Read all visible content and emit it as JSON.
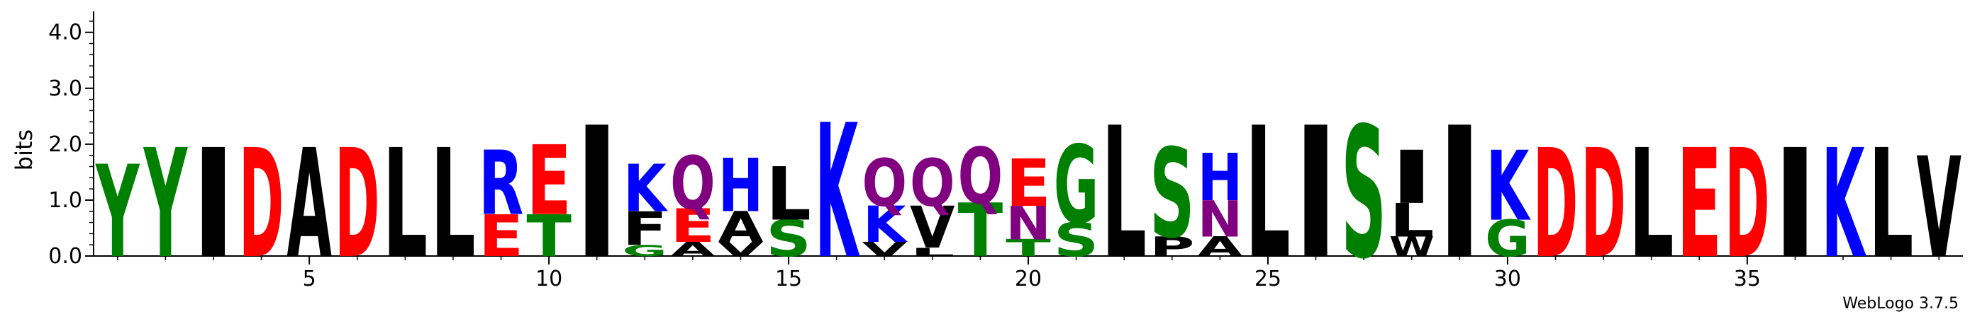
{
  "chart_data": {
    "type": "sequence-logo",
    "ylabel": "bits",
    "ylim": [
      0,
      4.3
    ],
    "yticks": [
      {
        "value": 0.0,
        "label": "0.0"
      },
      {
        "value": 1.0,
        "label": "1.0"
      },
      {
        "value": 2.0,
        "label": "2.0"
      },
      {
        "value": 3.0,
        "label": "3.0"
      },
      {
        "value": 4.0,
        "label": "4.0"
      }
    ],
    "xlim": [
      0.5,
      39.5
    ],
    "xticks": [
      {
        "value": 5,
        "label": "5"
      },
      {
        "value": 10,
        "label": "10"
      },
      {
        "value": 15,
        "label": "15"
      },
      {
        "value": 20,
        "label": "20"
      },
      {
        "value": 25,
        "label": "25"
      },
      {
        "value": 30,
        "label": "30"
      },
      {
        "value": 35,
        "label": "35"
      }
    ],
    "footer": "WebLogo 3.7.5",
    "colors": {
      "hydrophobic": "#000000",
      "polar": "#008000",
      "basic": "#0000ff",
      "acidic": "#ff0000",
      "amide": "#800080"
    },
    "positions": [
      {
        "pos": 1,
        "letters": [
          {
            "aa": "Y",
            "bits": 1.65
          }
        ]
      },
      {
        "pos": 2,
        "letters": [
          {
            "aa": "Y",
            "bits": 1.95
          }
        ]
      },
      {
        "pos": 3,
        "letters": [
          {
            "aa": "I",
            "bits": 1.95
          }
        ]
      },
      {
        "pos": 4,
        "letters": [
          {
            "aa": "D",
            "bits": 1.95
          }
        ]
      },
      {
        "pos": 5,
        "letters": [
          {
            "aa": "A",
            "bits": 1.95
          }
        ]
      },
      {
        "pos": 6,
        "letters": [
          {
            "aa": "D",
            "bits": 1.95
          }
        ]
      },
      {
        "pos": 7,
        "letters": [
          {
            "aa": "L",
            "bits": 1.95
          }
        ]
      },
      {
        "pos": 8,
        "letters": [
          {
            "aa": "L",
            "bits": 1.95
          }
        ]
      },
      {
        "pos": 9,
        "letters": [
          {
            "aa": "E",
            "bits": 0.75
          },
          {
            "aa": "R",
            "bits": 1.15
          }
        ]
      },
      {
        "pos": 10,
        "letters": [
          {
            "aa": "T",
            "bits": 0.75
          },
          {
            "aa": "E",
            "bits": 1.25
          }
        ]
      },
      {
        "pos": 11,
        "letters": [
          {
            "aa": "I",
            "bits": 2.35
          }
        ]
      },
      {
        "pos": 12,
        "letters": [
          {
            "aa": "G",
            "bits": 0.2
          },
          {
            "aa": "F",
            "bits": 0.6
          },
          {
            "aa": "K",
            "bits": 0.85
          }
        ]
      },
      {
        "pos": 13,
        "letters": [
          {
            "aa": "A",
            "bits": 0.25
          },
          {
            "aa": "E",
            "bits": 0.6
          },
          {
            "aa": "Q",
            "bits": 0.95
          }
        ]
      },
      {
        "pos": 14,
        "letters": [
          {
            "aa": "V",
            "bits": 0.25
          },
          {
            "aa": "A",
            "bits": 0.55
          },
          {
            "aa": "H",
            "bits": 0.95
          }
        ]
      },
      {
        "pos": 15,
        "letters": [
          {
            "aa": "S",
            "bits": 0.65
          },
          {
            "aa": "L",
            "bits": 0.95
          }
        ]
      },
      {
        "pos": 16,
        "letters": [
          {
            "aa": "K",
            "bits": 2.4
          }
        ]
      },
      {
        "pos": 17,
        "letters": [
          {
            "aa": "V",
            "bits": 0.25
          },
          {
            "aa": "K",
            "bits": 0.65
          },
          {
            "aa": "Q",
            "bits": 0.85
          }
        ]
      },
      {
        "pos": 18,
        "letters": [
          {
            "aa": "L",
            "bits": 0.15
          },
          {
            "aa": "V",
            "bits": 0.75
          },
          {
            "aa": "Q",
            "bits": 0.85
          }
        ]
      },
      {
        "pos": 19,
        "letters": [
          {
            "aa": "T",
            "bits": 0.95
          },
          {
            "aa": "Q",
            "bits": 1.0
          }
        ]
      },
      {
        "pos": 20,
        "letters": [
          {
            "aa": "T",
            "bits": 0.3
          },
          {
            "aa": "N",
            "bits": 0.6
          },
          {
            "aa": "E",
            "bits": 0.85
          }
        ]
      },
      {
        "pos": 21,
        "letters": [
          {
            "aa": "S",
            "bits": 0.6
          },
          {
            "aa": "G",
            "bits": 1.4
          }
        ]
      },
      {
        "pos": 22,
        "letters": [
          {
            "aa": "L",
            "bits": 2.35
          }
        ]
      },
      {
        "pos": 23,
        "letters": [
          {
            "aa": "P",
            "bits": 0.35
          },
          {
            "aa": "S",
            "bits": 1.6
          }
        ]
      },
      {
        "pos": 24,
        "letters": [
          {
            "aa": "A",
            "bits": 0.35
          },
          {
            "aa": "N",
            "bits": 0.65
          },
          {
            "aa": "H",
            "bits": 0.85
          }
        ]
      },
      {
        "pos": 25,
        "letters": [
          {
            "aa": "L",
            "bits": 2.35
          }
        ]
      },
      {
        "pos": 26,
        "letters": [
          {
            "aa": "I",
            "bits": 2.35
          }
        ]
      },
      {
        "pos": 27,
        "letters": [
          {
            "aa": "S",
            "bits": 2.35
          }
        ]
      },
      {
        "pos": 28,
        "letters": [
          {
            "aa": "W",
            "bits": 0.35
          },
          {
            "aa": "L",
            "bits": 0.6
          },
          {
            "aa": "I",
            "bits": 0.95
          }
        ]
      },
      {
        "pos": 29,
        "letters": [
          {
            "aa": "I",
            "bits": 2.35
          }
        ]
      },
      {
        "pos": 30,
        "letters": [
          {
            "aa": "G",
            "bits": 0.65
          },
          {
            "aa": "K",
            "bits": 1.25
          }
        ]
      },
      {
        "pos": 31,
        "letters": [
          {
            "aa": "D",
            "bits": 1.95
          }
        ]
      },
      {
        "pos": 32,
        "letters": [
          {
            "aa": "D",
            "bits": 1.95
          }
        ]
      },
      {
        "pos": 33,
        "letters": [
          {
            "aa": "L",
            "bits": 1.95
          }
        ]
      },
      {
        "pos": 34,
        "letters": [
          {
            "aa": "E",
            "bits": 1.95
          }
        ]
      },
      {
        "pos": 35,
        "letters": [
          {
            "aa": "D",
            "bits": 1.95
          }
        ]
      },
      {
        "pos": 36,
        "letters": [
          {
            "aa": "I",
            "bits": 1.95
          }
        ]
      },
      {
        "pos": 37,
        "letters": [
          {
            "aa": "K",
            "bits": 1.95
          }
        ]
      },
      {
        "pos": 38,
        "letters": [
          {
            "aa": "L",
            "bits": 1.95
          }
        ]
      },
      {
        "pos": 39,
        "letters": [
          {
            "aa": "V",
            "bits": 1.8
          }
        ]
      }
    ]
  }
}
